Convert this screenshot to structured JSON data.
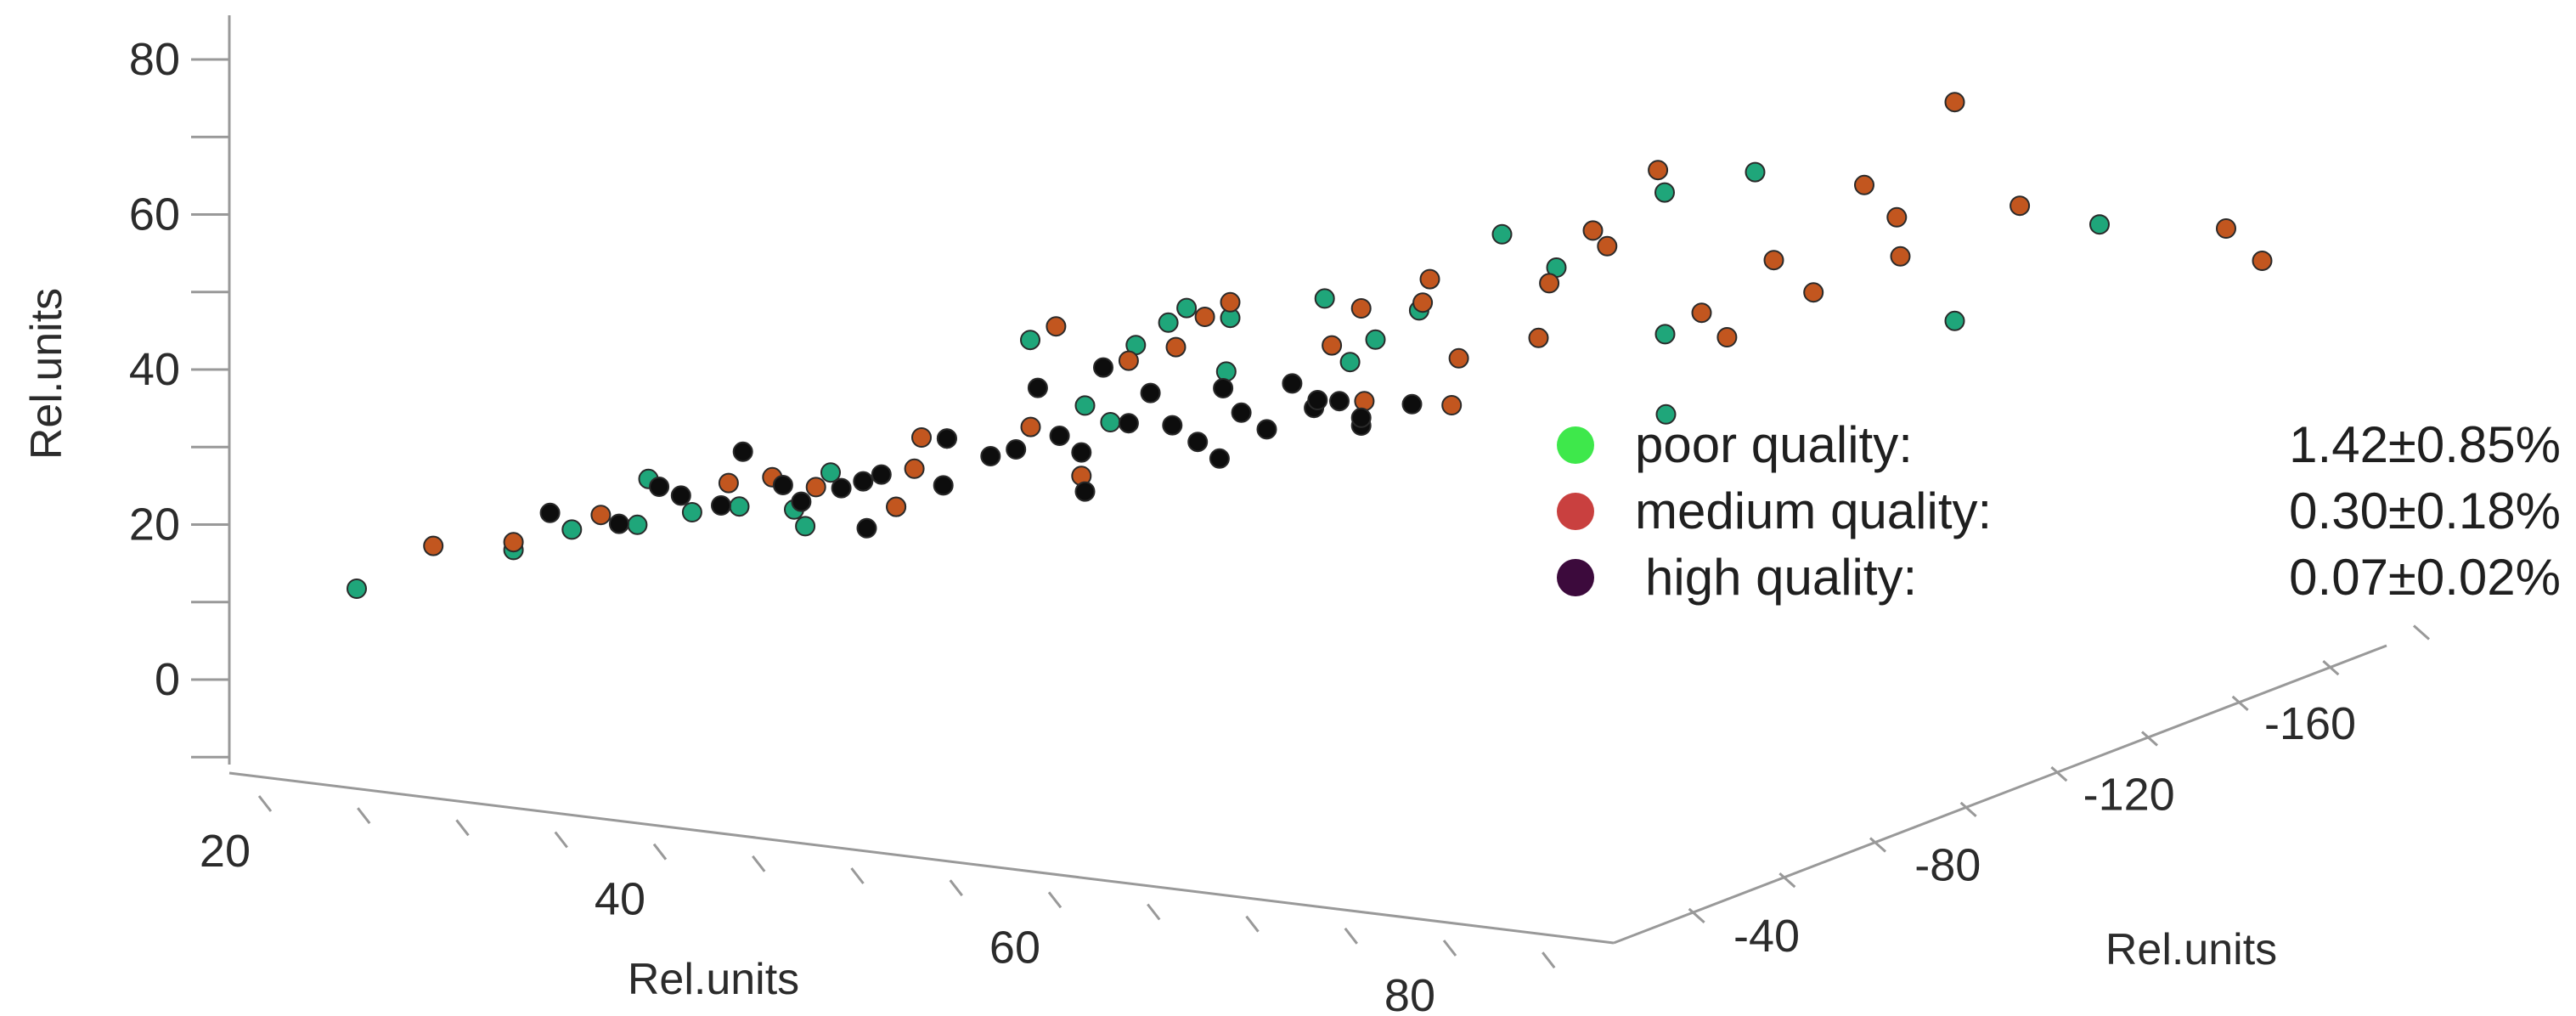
{
  "chart_data": {
    "type": "scatter3d",
    "axes": {
      "x": {
        "label": "Rel.units",
        "ticks": [
          20,
          40,
          60,
          80
        ]
      },
      "y": {
        "label": "Rel.units",
        "ticks": [
          -40,
          -80,
          -120,
          -160
        ]
      },
      "z": {
        "label": "Rel.units",
        "ticks": [
          0,
          20,
          40,
          60,
          80
        ]
      }
    },
    "legend": {
      "placement": "right",
      "items": [
        {
          "label": "poor quality:",
          "value": "1.42±0.85%",
          "color": "#3ee84b"
        },
        {
          "label": "medium quality:",
          "value": "0.30±0.18%",
          "color": "#c9403f"
        },
        {
          "label": "high quality:",
          "value": "0.07±0.02%",
          "color": "#3c0a3c"
        }
      ]
    },
    "marker_colors": {
      "poor": "#1fa67a",
      "medium": "#c2561f",
      "high": "#0d0d0d"
    },
    "series": [
      {
        "name": "poor quality",
        "key": "poor",
        "points": [
          [
            23,
            -45,
            12
          ],
          [
            31,
            -48,
            18
          ],
          [
            34,
            -49,
            21
          ],
          [
            37,
            -52,
            22
          ],
          [
            38,
            -50,
            28
          ],
          [
            40,
            -52,
            24
          ],
          [
            42,
            -55,
            25
          ],
          [
            45,
            -55,
            25
          ],
          [
            46,
            -53,
            23
          ],
          [
            47,
            -55,
            30
          ],
          [
            50,
            -58,
            26
          ],
          [
            52,
            -62,
            35
          ],
          [
            55,
            -70,
            48
          ],
          [
            58,
            -70,
            40
          ],
          [
            59,
            -72,
            38
          ],
          [
            60,
            -74,
            48
          ],
          [
            61,
            -78,
            51
          ],
          [
            63,
            -84,
            45
          ],
          [
            64,
            -80,
            52
          ],
          [
            62,
            -78,
            53
          ],
          [
            68,
            -86,
            55
          ],
          [
            69,
            -88,
            47
          ],
          [
            70,
            -90,
            50
          ],
          [
            72,
            -92,
            54
          ],
          [
            74,
            -105,
            64
          ],
          [
            76,
            -110,
            60
          ],
          [
            79,
            -125,
            70
          ],
          [
            80,
            -120,
            52
          ],
          [
            82,
            -135,
            73
          ],
          [
            82,
            -110,
            42
          ],
          [
            90,
            -150,
            55
          ],
          [
            95,
            -165,
            68
          ]
        ]
      },
      {
        "name": "medium quality",
        "key": "medium",
        "points": [
          [
            27,
            -46,
            18
          ],
          [
            31,
            -48,
            19
          ],
          [
            35,
            -52,
            23
          ],
          [
            42,
            -52,
            28
          ],
          [
            44,
            -54,
            29
          ],
          [
            46,
            -56,
            28
          ],
          [
            50,
            -58,
            26
          ],
          [
            51,
            -60,
            35
          ],
          [
            51,
            -58,
            31
          ],
          [
            56,
            -65,
            37
          ],
          [
            57,
            -67,
            50
          ],
          [
            58,
            -69,
            31
          ],
          [
            60,
            -72,
            46
          ],
          [
            62,
            -75,
            48
          ],
          [
            63,
            -78,
            52
          ],
          [
            64,
            -80,
            54
          ],
          [
            68,
            -88,
            49
          ],
          [
            69,
            -92,
            42
          ],
          [
            70,
            -86,
            54
          ],
          [
            72,
            -95,
            58
          ],
          [
            72,
            -93,
            55
          ],
          [
            73,
            -96,
            42
          ],
          [
            73,
            -98,
            48
          ],
          [
            76,
            -105,
            51
          ],
          [
            76,
            -108,
            58
          ],
          [
            78,
            -110,
            65
          ],
          [
            78,
            -114,
            63
          ],
          [
            80,
            -118,
            73
          ],
          [
            82,
            -120,
            55
          ],
          [
            83,
            -122,
            52
          ],
          [
            84,
            -130,
            62
          ],
          [
            85,
            -136,
            58
          ],
          [
            87,
            -140,
            72
          ],
          [
            88,
            -144,
            68
          ],
          [
            88,
            -145,
            63
          ],
          [
            90,
            -150,
            83
          ],
          [
            92,
            -158,
            70
          ],
          [
            99,
            -180,
            68
          ],
          [
            100,
            -185,
            64
          ]
        ]
      },
      {
        "name": "high quality",
        "key": "high",
        "points": [
          [
            33,
            -48,
            23
          ],
          [
            36,
            -52,
            22
          ],
          [
            38,
            -53,
            27
          ],
          [
            39,
            -54,
            26
          ],
          [
            41,
            -55,
            25
          ],
          [
            42,
            -56,
            32
          ],
          [
            44,
            -57,
            28
          ],
          [
            45,
            -57,
            26
          ],
          [
            47,
            -58,
            28
          ],
          [
            48,
            -59,
            29
          ],
          [
            49,
            -59,
            30
          ],
          [
            48,
            -60,
            23
          ],
          [
            52,
            -62,
            35
          ],
          [
            52,
            -61,
            29
          ],
          [
            54,
            -64,
            33
          ],
          [
            55,
            -66,
            34
          ],
          [
            56,
            -67,
            42
          ],
          [
            57,
            -68,
            36
          ],
          [
            58,
            -69,
            34
          ],
          [
            58,
            -70,
            29
          ],
          [
            59,
            -70,
            45
          ],
          [
            60,
            -72,
            38
          ],
          [
            61,
            -73,
            42
          ],
          [
            62,
            -74,
            38
          ],
          [
            63,
            -76,
            36
          ],
          [
            64,
            -77,
            34
          ],
          [
            64,
            -78,
            43
          ],
          [
            65,
            -78,
            40
          ],
          [
            66,
            -80,
            38
          ],
          [
            67,
            -82,
            44
          ],
          [
            68,
            -83,
            41
          ],
          [
            68,
            -84,
            42
          ],
          [
            69,
            -85,
            42
          ],
          [
            70,
            -86,
            39
          ],
          [
            70,
            -86,
            40
          ],
          [
            72,
            -90,
            42
          ]
        ]
      }
    ]
  }
}
